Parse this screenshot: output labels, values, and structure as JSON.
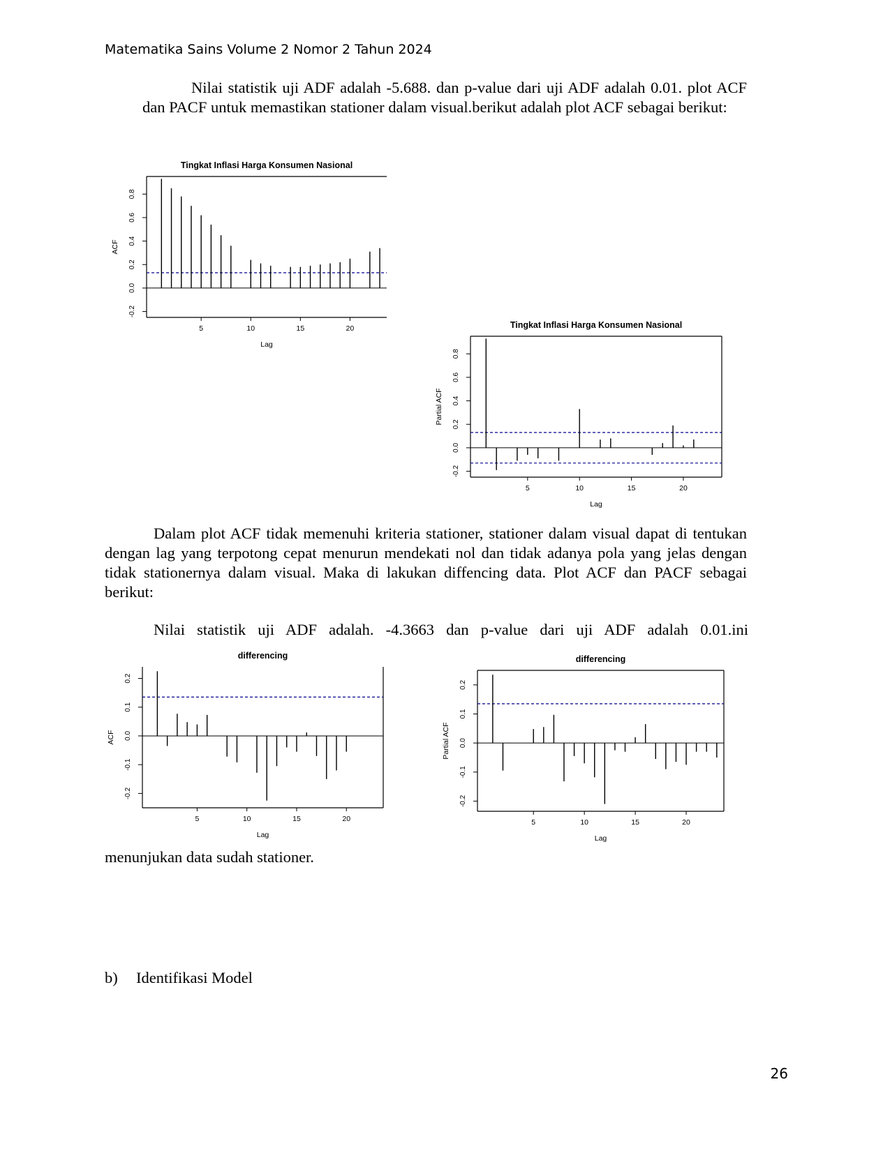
{
  "header": {
    "journal": "Matematika Sains Volume 2 Nomor 2 Tahun 2024"
  },
  "paragraphs": {
    "p1": "Nilai statistik uji ADF adalah -5.688. dan p-value dari uji ADF adalah 0.01. plot ACF dan PACF untuk memastikan stationer dalam visual.berikut adalah plot ACF sebagai berikut:",
    "p2": "Dalam plot ACF tidak memenuhi kriteria stationer, stationer dalam visual dapat di tentukan dengan lag yang terpotong cepat menurun mendekati nol dan tidak adanya pola yang jelas dengan tidak stationernya dalam visual. Maka di lakukan diffencing data. Plot ACF dan PACF sebagai berikut:",
    "p3": "Nilai statistik uji ADF adalah. -4.3663 dan p-value dari uji ADF adalah 0.01.ini",
    "p4": "menunjukan data sudah stationer."
  },
  "section": {
    "label": "b)",
    "title": "Identifikasi Model"
  },
  "page_number": "26",
  "chart_data": [
    {
      "type": "bar",
      "title": "Tingkat Inflasi Harga Konsumen Nasional",
      "xlabel": "Lag",
      "ylabel": "ACF",
      "x_ticks": [
        "5",
        "10",
        "15",
        "20"
      ],
      "y_ticks": [
        "-0.2",
        "0.0",
        "0.2",
        "0.4",
        "0.6",
        "0.8"
      ],
      "ylim": [
        -0.25,
        0.95
      ],
      "xlim": [
        -0.5,
        23.7
      ],
      "box_sides": [
        "left",
        "top",
        "bottom"
      ],
      "conf": 0.13,
      "conf_lower": false,
      "lags": [
        1,
        2,
        3,
        4,
        5,
        6,
        7,
        8,
        10,
        11,
        12,
        14,
        15,
        16,
        17,
        18,
        19,
        20,
        22,
        23
      ],
      "values": [
        0.93,
        0.85,
        0.78,
        0.7,
        0.62,
        0.54,
        0.45,
        0.36,
        0.24,
        0.21,
        0.19,
        0.18,
        0.18,
        0.19,
        0.2,
        0.21,
        0.22,
        0.25,
        0.31,
        0.34
      ],
      "colors": {
        "bars": "#000000",
        "conf": "#00008b"
      }
    },
    {
      "type": "bar",
      "title": "Tingkat Inflasi Harga Konsumen Nasional",
      "xlabel": "Lag",
      "ylabel": "Partial ACF",
      "x_ticks": [
        "5",
        "10",
        "15",
        "20"
      ],
      "y_ticks": [
        "-0.2",
        "0.0",
        "0.2",
        "0.4",
        "0.6",
        "0.8"
      ],
      "ylim": [
        -0.25,
        0.95
      ],
      "xlim": [
        -0.5,
        23.7
      ],
      "box_sides": [
        "left",
        "top",
        "right",
        "bottom"
      ],
      "conf": 0.13,
      "conf_lower": true,
      "lags": [
        1,
        2,
        4,
        5,
        6,
        8,
        10,
        12,
        13,
        17,
        18,
        19,
        20,
        21
      ],
      "values": [
        0.93,
        -0.19,
        -0.11,
        -0.06,
        -0.09,
        -0.11,
        0.33,
        0.07,
        0.08,
        -0.06,
        0.04,
        0.19,
        0.02,
        0.07
      ],
      "colors": {
        "bars": "#000000",
        "conf": "#00008b"
      }
    },
    {
      "type": "bar",
      "title": "differencing",
      "xlabel": "Lag",
      "ylabel": "ACF",
      "x_ticks": [
        "5",
        "10",
        "15",
        "20"
      ],
      "y_ticks": [
        "-0.2",
        "-0.1",
        "0.0",
        "0.1",
        "0.2"
      ],
      "ylim": [
        -0.25,
        0.24
      ],
      "xlim": [
        -0.5,
        23.7
      ],
      "box_sides": [
        "left",
        "right",
        "bottom"
      ],
      "conf": 0.135,
      "conf_lower": false,
      "lags": [
        1,
        2,
        3,
        4,
        5,
        6,
        8,
        9,
        11,
        12,
        13,
        14,
        15,
        16,
        17,
        18,
        19,
        20
      ],
      "values": [
        0.225,
        -0.035,
        0.077,
        0.048,
        0.04,
        0.073,
        -0.072,
        -0.092,
        -0.128,
        -0.225,
        -0.105,
        -0.04,
        -0.055,
        0.012,
        -0.07,
        -0.15,
        -0.12,
        -0.055
      ],
      "colors": {
        "bars": "#000000",
        "conf": "#00008b"
      }
    },
    {
      "type": "bar",
      "title": "differencing",
      "xlabel": "Lag",
      "ylabel": "Partial ACF",
      "x_ticks": [
        "5",
        "10",
        "15",
        "20"
      ],
      "y_ticks": [
        "-0.2",
        "-0.1",
        "0.0",
        "0.1",
        "0.2"
      ],
      "ylim": [
        -0.235,
        0.25
      ],
      "xlim": [
        -0.5,
        23.7
      ],
      "box_sides": [
        "left",
        "top",
        "right",
        "bottom"
      ],
      "conf": 0.135,
      "conf_lower": false,
      "lags": [
        1,
        2,
        5,
        6,
        7,
        8,
        9,
        10,
        11,
        12,
        13,
        14,
        15,
        16,
        17,
        18,
        19,
        20,
        21,
        22,
        23
      ],
      "values": [
        0.235,
        -0.095,
        0.048,
        0.055,
        0.097,
        -0.132,
        -0.045,
        -0.07,
        -0.118,
        -0.21,
        -0.025,
        -0.03,
        0.02,
        0.065,
        -0.055,
        -0.09,
        -0.065,
        -0.075,
        -0.03,
        -0.03,
        -0.05
      ],
      "colors": {
        "bars": "#000000",
        "conf": "#00008b"
      }
    }
  ]
}
